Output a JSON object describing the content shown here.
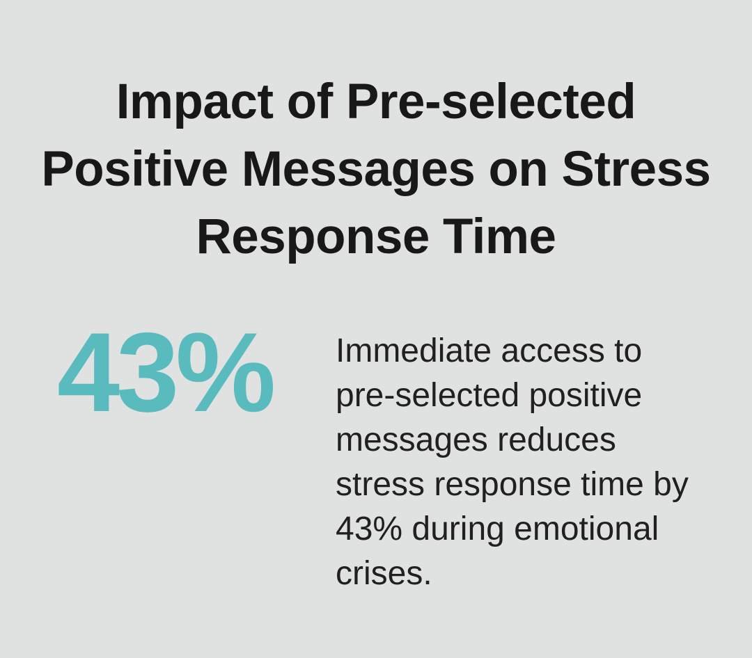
{
  "slide": {
    "title": "Impact of Pre-selected Positive Messages on Stress Response Time",
    "title_lines": [
      "Impact of Pre-selected",
      "Positive Messages on Stress",
      "Response Time"
    ],
    "stat": {
      "value": "43%"
    },
    "description": "Immediate access to pre-selected positive messages reduces stress response time by 43% during emotional crises.",
    "description_lines": [
      "Immediate access to",
      "pre-selected positive",
      "messages reduces",
      "stress response time by",
      "43% during emotional",
      "crises."
    ],
    "colors": {
      "background": "#e0e1e1",
      "title_text": "#181818",
      "body_text": "#202020",
      "accent_teal": "#59bbbd"
    }
  }
}
